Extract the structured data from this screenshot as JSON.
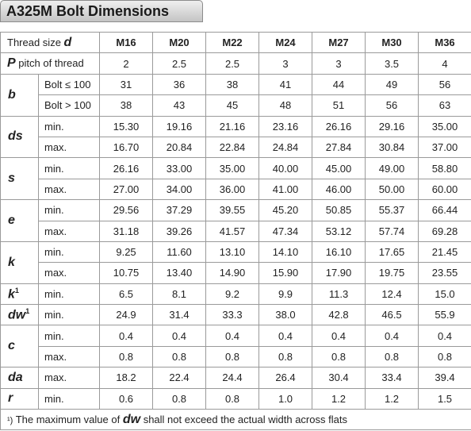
{
  "header": {
    "title": "A325M Bolt Dimensions"
  },
  "table": {
    "thread_size_label": "Thread size",
    "thread_size_symbol": "d",
    "sizes": [
      "M16",
      "M20",
      "M22",
      "M24",
      "M27",
      "M30",
      "M36"
    ],
    "pitch": {
      "symbol": "P",
      "label": "pitch of thread",
      "values": [
        "2",
        "2.5",
        "2.5",
        "3",
        "3",
        "3.5",
        "4"
      ]
    },
    "groups": [
      {
        "symbol": "b",
        "rows": [
          {
            "label": "Bolt ≤ 100",
            "values": [
              "31",
              "36",
              "38",
              "41",
              "44",
              "49",
              "56"
            ]
          },
          {
            "label": "Bolt > 100",
            "values": [
              "38",
              "43",
              "45",
              "48",
              "51",
              "56",
              "63"
            ]
          }
        ]
      },
      {
        "symbol": "ds",
        "rows": [
          {
            "label": "min.",
            "values": [
              "15.30",
              "19.16",
              "21.16",
              "23.16",
              "26.16",
              "29.16",
              "35.00"
            ]
          },
          {
            "label": "max.",
            "values": [
              "16.70",
              "20.84",
              "22.84",
              "24.84",
              "27.84",
              "30.84",
              "37.00"
            ]
          }
        ]
      },
      {
        "symbol": "s",
        "rows": [
          {
            "label": "min.",
            "values": [
              "26.16",
              "33.00",
              "35.00",
              "40.00",
              "45.00",
              "49.00",
              "58.80"
            ]
          },
          {
            "label": "max.",
            "values": [
              "27.00",
              "34.00",
              "36.00",
              "41.00",
              "46.00",
              "50.00",
              "60.00"
            ]
          }
        ]
      },
      {
        "symbol": "e",
        "rows": [
          {
            "label": "min.",
            "values": [
              "29.56",
              "37.29",
              "39.55",
              "45.20",
              "50.85",
              "55.37",
              "66.44"
            ]
          },
          {
            "label": "max.",
            "values": [
              "31.18",
              "39.26",
              "41.57",
              "47.34",
              "53.12",
              "57.74",
              "69.28"
            ]
          }
        ]
      },
      {
        "symbol": "k",
        "rows": [
          {
            "label": "min.",
            "values": [
              "9.25",
              "11.60",
              "13.10",
              "14.10",
              "16.10",
              "17.65",
              "21.45"
            ]
          },
          {
            "label": "max.",
            "values": [
              "10.75",
              "13.40",
              "14.90",
              "15.90",
              "17.90",
              "19.75",
              "23.55"
            ]
          }
        ]
      },
      {
        "symbol": "k",
        "sup": "1",
        "rows": [
          {
            "label": "min.",
            "values": [
              "6.5",
              "8.1",
              "9.2",
              "9.9",
              "11.3",
              "12.4",
              "15.0"
            ]
          }
        ]
      },
      {
        "symbol": "dw",
        "sup": "1",
        "rows": [
          {
            "label": "min.",
            "values": [
              "24.9",
              "31.4",
              "33.3",
              "38.0",
              "42.8",
              "46.5",
              "55.9"
            ]
          }
        ]
      },
      {
        "symbol": "c",
        "rows": [
          {
            "label": "min.",
            "values": [
              "0.4",
              "0.4",
              "0.4",
              "0.4",
              "0.4",
              "0.4",
              "0.4"
            ]
          },
          {
            "label": "max.",
            "values": [
              "0.8",
              "0.8",
              "0.8",
              "0.8",
              "0.8",
              "0.8",
              "0.8"
            ]
          }
        ]
      },
      {
        "symbol": "da",
        "rows": [
          {
            "label": "max.",
            "values": [
              "18.2",
              "22.4",
              "24.4",
              "26.4",
              "30.4",
              "33.4",
              "39.4"
            ]
          }
        ]
      },
      {
        "symbol": "r",
        "rows": [
          {
            "label": "min.",
            "values": [
              "0.6",
              "0.8",
              "0.8",
              "1.0",
              "1.2",
              "1.2",
              "1.5"
            ]
          }
        ]
      }
    ]
  },
  "footnote": {
    "marker": "¹)",
    "before": "The maximum value of",
    "symbol": "dw",
    "after": "shall not exceed the actual width across flats"
  }
}
